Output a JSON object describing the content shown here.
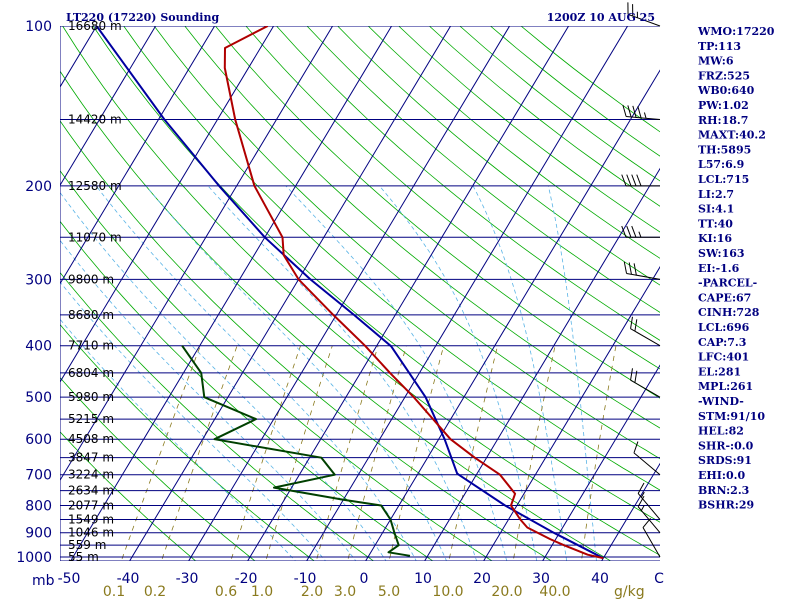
{
  "header": {
    "station": "LT220 (17220) Sounding",
    "time": "1200Z 10 AUG 25"
  },
  "indices": [
    "WMO:17220",
    "TP:113",
    "MW:6",
    "FRZ:525",
    "WB0:640",
    "PW:1.02",
    "RH:18.7",
    "MAXT:40.2",
    "TH:5895",
    "L57:6.9",
    "LCL:715",
    "LI:2.7",
    "SI:4.1",
    "TT:40",
    "KI:16",
    "SW:163",
    "EI:-1.6",
    "-PARCEL-",
    "CAPE:67",
    "CINH:728",
    "LCL:696",
    "CAP:7.3",
    "LFC:401",
    "EL:281",
    "MPL:261",
    "-WIND-",
    "STM:91/10",
    "HEL:82",
    "SHR-:0.0",
    "SRDS:91",
    "EHI:0.0",
    "BRN:2.3",
    "BSHR:29"
  ],
  "axis": {
    "pressure_unit": "mb",
    "mixing_unit": "g/kg",
    "temp_ticks": [
      "-50",
      "-40",
      "-30",
      "-20",
      "-10",
      "0",
      "10",
      "20",
      "30",
      "40",
      "C"
    ],
    "mixing_ticks": [
      "0.1",
      "0.2",
      "0.6",
      "1.0",
      "2.0",
      "3.0",
      "5.0",
      "10.0",
      "20.0",
      "40.0"
    ]
  },
  "colors": {
    "isobar": "#000080",
    "isotherm": "#000080",
    "dry_adiabat": "#00aa00",
    "moist_adiabat": "#5ab4e6",
    "mixing_ratio": "#8a7a1e",
    "temperature": "#b00000",
    "dewpoint": "#004000",
    "parcel": "#0000a0",
    "wind": "#000000"
  },
  "chart_data": {
    "type": "line",
    "title": "LT220 (17220) Sounding",
    "subtitle": "1200Z 10 AUG 25",
    "pressure_labels": [
      {
        "p": 100,
        "label": "100"
      },
      {
        "p": 200,
        "label": "200"
      },
      {
        "p": 300,
        "label": "300"
      },
      {
        "p": 400,
        "label": "400"
      },
      {
        "p": 500,
        "label": "500"
      },
      {
        "p": 600,
        "label": "600"
      },
      {
        "p": 700,
        "label": "700"
      },
      {
        "p": 800,
        "label": "800"
      },
      {
        "p": 900,
        "label": "900"
      },
      {
        "p": 1000,
        "label": "1000"
      }
    ],
    "height_levels": [
      {
        "p": 100,
        "height": "16680 m"
      },
      {
        "p": 150,
        "height": "14420 m"
      },
      {
        "p": 200,
        "height": "12580 m"
      },
      {
        "p": 250,
        "height": "11070 m"
      },
      {
        "p": 300,
        "height": "9800 m"
      },
      {
        "p": 350,
        "height": "8680 m"
      },
      {
        "p": 400,
        "height": "7710 m"
      },
      {
        "p": 450,
        "height": "6804 m"
      },
      {
        "p": 500,
        "height": "5980 m"
      },
      {
        "p": 550,
        "height": "5215 m"
      },
      {
        "p": 600,
        "height": "4508 m"
      },
      {
        "p": 650,
        "height": "3847 m"
      },
      {
        "p": 700,
        "height": "3224 m"
      },
      {
        "p": 750,
        "height": "2634 m"
      },
      {
        "p": 800,
        "height": "2077 m"
      },
      {
        "p": 850,
        "height": "1549 m"
      },
      {
        "p": 900,
        "height": "1046 m"
      },
      {
        "p": 950,
        "height": "559 m"
      },
      {
        "p": 1000,
        "height": "55 m"
      }
    ],
    "temperature": [
      {
        "p": 1005,
        "t": 40
      },
      {
        "p": 990,
        "t": 37
      },
      {
        "p": 950,
        "t": 32
      },
      {
        "p": 925,
        "t": 29
      },
      {
        "p": 880,
        "t": 24
      },
      {
        "p": 850,
        "t": 22
      },
      {
        "p": 800,
        "t": 19
      },
      {
        "p": 760,
        "t": 18.5
      },
      {
        "p": 700,
        "t": 14
      },
      {
        "p": 650,
        "t": 8
      },
      {
        "p": 600,
        "t": 2
      },
      {
        "p": 550,
        "t": -3
      },
      {
        "p": 500,
        "t": -8.5
      },
      {
        "p": 450,
        "t": -15
      },
      {
        "p": 400,
        "t": -22
      },
      {
        "p": 350,
        "t": -30.5
      },
      {
        "p": 300,
        "t": -40
      },
      {
        "p": 270,
        "t": -45
      },
      {
        "p": 250,
        "t": -47
      },
      {
        "p": 200,
        "t": -57
      },
      {
        "p": 150,
        "t": -67
      },
      {
        "p": 120,
        "t": -74
      },
      {
        "p": 110,
        "t": -76
      },
      {
        "p": 100,
        "t": -71
      }
    ],
    "dewpoint": [
      {
        "p": 995,
        "t": 7
      },
      {
        "p": 980,
        "t": 3
      },
      {
        "p": 950,
        "t": 4
      },
      {
        "p": 900,
        "t": 2
      },
      {
        "p": 850,
        "t": 0
      },
      {
        "p": 800,
        "t": -3
      },
      {
        "p": 780,
        "t": -10
      },
      {
        "p": 740,
        "t": -23
      },
      {
        "p": 700,
        "t": -14
      },
      {
        "p": 650,
        "t": -18
      },
      {
        "p": 600,
        "t": -38
      },
      {
        "p": 550,
        "t": -33
      },
      {
        "p": 500,
        "t": -44
      },
      {
        "p": 450,
        "t": -47
      },
      {
        "p": 400,
        "t": -53
      }
    ],
    "parcel": [
      {
        "p": 1005,
        "t": 40
      },
      {
        "p": 900,
        "t": 29
      },
      {
        "p": 800,
        "t": 18
      },
      {
        "p": 700,
        "t": 7
      },
      {
        "p": 696,
        "t": 6.6
      },
      {
        "p": 600,
        "t": 1
      },
      {
        "p": 500,
        "t": -6.5
      },
      {
        "p": 401,
        "t": -17.5
      },
      {
        "p": 350,
        "t": -27
      },
      {
        "p": 300,
        "t": -38
      },
      {
        "p": 250,
        "t": -50
      },
      {
        "p": 200,
        "t": -63
      },
      {
        "p": 150,
        "t": -79
      },
      {
        "p": 100,
        "t": -100
      }
    ],
    "wind": [
      {
        "p": 1000,
        "dir": 330,
        "spd": 10
      },
      {
        "p": 900,
        "dir": 320,
        "spd": 15
      },
      {
        "p": 850,
        "dir": 320,
        "spd": 15
      },
      {
        "p": 700,
        "dir": 310,
        "spd": 10
      },
      {
        "p": 500,
        "dir": 300,
        "spd": 20
      },
      {
        "p": 400,
        "dir": 300,
        "spd": 20
      },
      {
        "p": 300,
        "dir": 280,
        "spd": 30
      },
      {
        "p": 250,
        "dir": 270,
        "spd": 35
      },
      {
        "p": 200,
        "dir": 270,
        "spd": 40
      },
      {
        "p": 150,
        "dir": 275,
        "spd": 45
      },
      {
        "p": 100,
        "dir": 290,
        "spd": 25
      }
    ]
  }
}
